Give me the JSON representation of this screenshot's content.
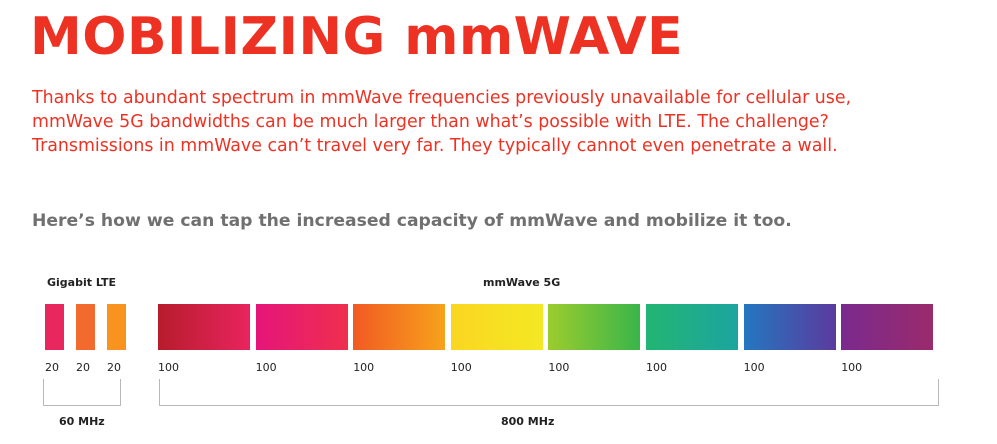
{
  "title": "MOBILIZING mmWAVE",
  "intro": [
    "Thanks to abundant spectrum in mmWave frequencies previously unavailable for cellular use,",
    "mmWave 5G bandwidths can be much larger than what’s possible with LTE. The challenge?",
    "Transmissions in mmWave can’t travel very far. They typically cannot even penetrate a wall."
  ],
  "subhead": "Here’s how we can tap the increased capacity of mmWave and mobilize it too.",
  "lte": {
    "label": "Gigabit LTE",
    "channels": [
      {
        "value": "20",
        "color_from": "#e8275f",
        "color_to": "#e8275f"
      },
      {
        "value": "20",
        "color_from": "#f26a2e",
        "color_to": "#f26a2e"
      },
      {
        "value": "20",
        "color_from": "#f7931e",
        "color_to": "#f7931e"
      }
    ],
    "total": "60 MHz"
  },
  "mmwave": {
    "label": "mmWave 5G",
    "channels": [
      {
        "value": "100",
        "color_from": "#b71c2c",
        "color_to": "#e8245f"
      },
      {
        "value": "100",
        "color_from": "#e5157a",
        "color_to": "#ef2f4e"
      },
      {
        "value": "100",
        "color_from": "#f15a24",
        "color_to": "#f7a21b"
      },
      {
        "value": "100",
        "color_from": "#fbd621",
        "color_to": "#f3e823"
      },
      {
        "value": "100",
        "color_from": "#9ccc2d",
        "color_to": "#39b54a"
      },
      {
        "value": "100",
        "color_from": "#22b573",
        "color_to": "#1ba5a0"
      },
      {
        "value": "100",
        "color_from": "#2477c0",
        "color_to": "#5b3a9e"
      },
      {
        "value": "100",
        "color_from": "#7a2a8e",
        "color_to": "#9b2a6c"
      }
    ],
    "total": "800 MHz"
  }
}
